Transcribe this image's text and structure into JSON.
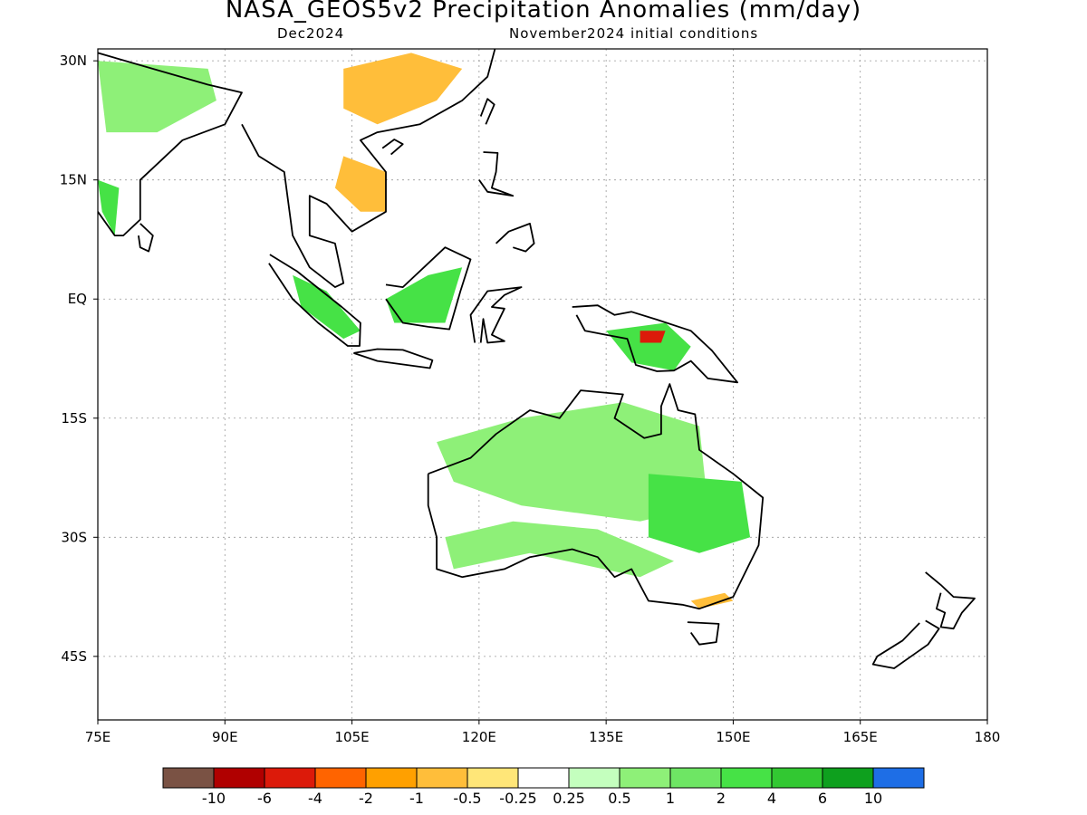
{
  "title": "NASA_GEOS5v2 Precipitation Anomalies (mm/day)",
  "subtitle_left": "Dec2024",
  "subtitle_right": "November2024 initial conditions",
  "map": {
    "lon_range": [
      75,
      180
    ],
    "lat_range": [
      -53,
      31.5
    ],
    "grid": "dotted",
    "lon_ticks": [
      {
        "lon": 75,
        "label": "75E"
      },
      {
        "lon": 90,
        "label": "90E"
      },
      {
        "lon": 105,
        "label": "105E"
      },
      {
        "lon": 120,
        "label": "120E"
      },
      {
        "lon": 135,
        "label": "135E"
      },
      {
        "lon": 150,
        "label": "150E"
      },
      {
        "lon": 165,
        "label": "165E"
      },
      {
        "lon": 180,
        "label": "180"
      }
    ],
    "lat_ticks": [
      {
        "lat": 30,
        "label": "30N"
      },
      {
        "lat": 15,
        "label": "15N"
      },
      {
        "lat": 0,
        "label": "EQ"
      },
      {
        "lat": -15,
        "label": "15S"
      },
      {
        "lat": -30,
        "label": "30S"
      },
      {
        "lat": -45,
        "label": "45S"
      }
    ]
  },
  "colorbar": {
    "colors": [
      "#7a5244",
      "#b00000",
      "#dc1a0a",
      "#ff6400",
      "#ffa000",
      "#ffbe3a",
      "#ffe678",
      "#ffffff",
      "#c4ffbe",
      "#8ef078",
      "#6ee664",
      "#46e246",
      "#32c832",
      "#0ea01e",
      "#1e6ee6"
    ],
    "labels": [
      "-10",
      "-6",
      "-4",
      "-2",
      "-1",
      "-0.5",
      "-0.25",
      "0.25",
      "0.5",
      "1",
      "2",
      "4",
      "6",
      "10"
    ]
  },
  "regions": [
    {
      "name": "india-west-ghats",
      "color": "#46e246",
      "pts": [
        [
          75,
          15
        ],
        [
          77.5,
          14
        ],
        [
          77,
          8
        ],
        [
          75.5,
          11
        ]
      ]
    },
    {
      "name": "india-north",
      "color": "#8ef078",
      "pts": [
        [
          75,
          30
        ],
        [
          88,
          29
        ],
        [
          89,
          25
        ],
        [
          82,
          21
        ],
        [
          76,
          21
        ]
      ]
    },
    {
      "name": "south-china",
      "color": "#ffbe3a",
      "pts": [
        [
          104,
          29
        ],
        [
          112,
          31
        ],
        [
          118,
          29
        ],
        [
          115,
          25
        ],
        [
          108,
          22
        ],
        [
          104,
          24
        ]
      ]
    },
    {
      "name": "indochina",
      "color": "#ffbe3a",
      "pts": [
        [
          104,
          18
        ],
        [
          109,
          16
        ],
        [
          109,
          11
        ],
        [
          106,
          11
        ],
        [
          103,
          14
        ]
      ]
    },
    {
      "name": "sumatra",
      "color": "#46e246",
      "pts": [
        [
          98,
          3
        ],
        [
          102,
          1
        ],
        [
          106,
          -4
        ],
        [
          104,
          -5
        ],
        [
          99,
          -1
        ]
      ]
    },
    {
      "name": "borneo",
      "color": "#46e246",
      "pts": [
        [
          109,
          0
        ],
        [
          114,
          3
        ],
        [
          118,
          4
        ],
        [
          116,
          -3
        ],
        [
          110,
          -3
        ]
      ]
    },
    {
      "name": "new-guinea",
      "color": "#46e246",
      "pts": [
        [
          135,
          -4
        ],
        [
          142,
          -3
        ],
        [
          145,
          -6
        ],
        [
          143,
          -9
        ],
        [
          138,
          -8
        ]
      ]
    },
    {
      "name": "png-dry",
      "color": "#dc1a0a",
      "pts": [
        [
          139,
          -4
        ],
        [
          142,
          -4
        ],
        [
          141.5,
          -5.5
        ],
        [
          139,
          -5.5
        ]
      ]
    },
    {
      "name": "australia-north",
      "color": "#8ef078",
      "pts": [
        [
          115,
          -18
        ],
        [
          125,
          -15
        ],
        [
          137,
          -13
        ],
        [
          146,
          -16
        ],
        [
          147,
          -26
        ],
        [
          139,
          -28
        ],
        [
          125,
          -26
        ],
        [
          117,
          -23
        ]
      ]
    },
    {
      "name": "australia-east",
      "color": "#46e246",
      "pts": [
        [
          140,
          -22
        ],
        [
          151,
          -23
        ],
        [
          152,
          -30
        ],
        [
          146,
          -32
        ],
        [
          140,
          -30
        ]
      ]
    },
    {
      "name": "australia-southwest",
      "color": "#8ef078",
      "pts": [
        [
          116,
          -30
        ],
        [
          124,
          -28
        ],
        [
          134,
          -29
        ],
        [
          143,
          -33
        ],
        [
          139,
          -35
        ],
        [
          126,
          -32
        ],
        [
          117,
          -34
        ]
      ]
    },
    {
      "name": "australia-southeast-dry",
      "color": "#ffbe3a",
      "pts": [
        [
          145,
          -38
        ],
        [
          149,
          -37
        ],
        [
          150,
          -38
        ],
        [
          146,
          -39
        ]
      ]
    }
  ],
  "coastlines": [
    {
      "name": "india",
      "pts": [
        [
          75,
          31
        ],
        [
          88,
          27
        ],
        [
          92,
          26
        ],
        [
          90,
          22
        ],
        [
          85,
          20
        ],
        [
          82,
          17
        ],
        [
          80,
          15
        ],
        [
          80,
          10
        ],
        [
          78,
          8
        ],
        [
          77,
          8
        ],
        [
          75,
          11
        ]
      ]
    },
    {
      "name": "sri-lanka",
      "pts": [
        [
          80,
          9.5
        ],
        [
          81.5,
          8
        ],
        [
          81,
          6
        ],
        [
          80,
          6.5
        ],
        [
          79.8,
          8
        ]
      ]
    },
    {
      "name": "southeast-asia",
      "pts": [
        [
          92,
          22
        ],
        [
          94,
          18
        ],
        [
          97,
          16
        ],
        [
          98,
          8
        ],
        [
          100,
          4
        ],
        [
          103,
          1.5
        ],
        [
          104,
          2
        ],
        [
          103,
          7
        ],
        [
          100,
          8
        ],
        [
          100,
          13
        ],
        [
          102,
          12
        ],
        [
          105,
          8.5
        ],
        [
          109,
          11
        ],
        [
          109,
          16
        ],
        [
          106,
          20
        ],
        [
          108,
          21
        ],
        [
          113,
          22
        ],
        [
          118,
          25
        ],
        [
          121,
          28
        ],
        [
          122,
          32
        ]
      ]
    },
    {
      "name": "taiwan",
      "pts": [
        [
          120.2,
          23
        ],
        [
          121,
          25.2
        ],
        [
          121.8,
          24.5
        ],
        [
          120.8,
          22
        ]
      ]
    },
    {
      "name": "hainan",
      "pts": [
        [
          108.6,
          19
        ],
        [
          110,
          20.1
        ],
        [
          111,
          19.5
        ],
        [
          109.6,
          18.2
        ]
      ]
    },
    {
      "name": "sumatra",
      "pts": [
        [
          95.3,
          5.6
        ],
        [
          98.5,
          3.5
        ],
        [
          103.8,
          -1
        ],
        [
          106,
          -3
        ],
        [
          105.9,
          -5.9
        ],
        [
          104.5,
          -5.9
        ],
        [
          101,
          -3
        ],
        [
          98,
          0
        ],
        [
          95.2,
          4.5
        ]
      ]
    },
    {
      "name": "java",
      "pts": [
        [
          105.2,
          -6.8
        ],
        [
          108,
          -6.3
        ],
        [
          111,
          -6.4
        ],
        [
          114.5,
          -7.7
        ],
        [
          114.2,
          -8.7
        ],
        [
          108,
          -7.8
        ],
        [
          105.2,
          -6.8
        ]
      ]
    },
    {
      "name": "borneo",
      "pts": [
        [
          109,
          1.8
        ],
        [
          111,
          1.5
        ],
        [
          114,
          4.5
        ],
        [
          116,
          6.5
        ],
        [
          119,
          5
        ],
        [
          117.8,
          1
        ],
        [
          116.5,
          -3.8
        ],
        [
          114,
          -3.5
        ],
        [
          111,
          -3
        ],
        [
          110,
          -1.5
        ],
        [
          109,
          0
        ]
      ]
    },
    {
      "name": "sulawesi",
      "pts": [
        [
          119.5,
          -5.5
        ],
        [
          119,
          -2
        ],
        [
          121,
          1
        ],
        [
          125,
          1.5
        ],
        [
          123,
          0.5
        ],
        [
          121.5,
          -1
        ],
        [
          123,
          -1.2
        ],
        [
          121.5,
          -4.5
        ],
        [
          123,
          -5.3
        ],
        [
          121,
          -5.5
        ],
        [
          120.5,
          -2.5
        ],
        [
          120.2,
          -5.5
        ]
      ]
    },
    {
      "name": "philippines-luzon",
      "pts": [
        [
          120.5,
          18.5
        ],
        [
          122.2,
          18.4
        ],
        [
          122,
          16
        ],
        [
          121.5,
          14
        ],
        [
          124,
          13
        ],
        [
          121,
          13.5
        ],
        [
          120,
          15
        ]
      ]
    },
    {
      "name": "mindanao",
      "pts": [
        [
          122,
          7
        ],
        [
          123.5,
          8.5
        ],
        [
          126,
          9.5
        ],
        [
          126.5,
          7
        ],
        [
          125.5,
          6
        ],
        [
          124,
          6.5
        ]
      ]
    },
    {
      "name": "new-guinea",
      "pts": [
        [
          131,
          -1
        ],
        [
          134,
          -0.8
        ],
        [
          136,
          -2
        ],
        [
          138,
          -1.6
        ],
        [
          141,
          -2.6
        ],
        [
          145,
          -4
        ],
        [
          147.5,
          -6.5
        ],
        [
          150.5,
          -10.5
        ],
        [
          147,
          -10
        ],
        [
          145,
          -7.8
        ],
        [
          143,
          -9
        ],
        [
          141,
          -9.1
        ],
        [
          138.5,
          -8.3
        ],
        [
          137.5,
          -5
        ],
        [
          135,
          -4.5
        ],
        [
          132.5,
          -4
        ],
        [
          131.5,
          -2
        ]
      ]
    },
    {
      "name": "australia",
      "pts": [
        [
          114,
          -22
        ],
        [
          114,
          -26
        ],
        [
          115,
          -30
        ],
        [
          115,
          -34
        ],
        [
          118,
          -35
        ],
        [
          123,
          -34
        ],
        [
          126,
          -32.5
        ],
        [
          131,
          -31.5
        ],
        [
          134,
          -32.5
        ],
        [
          136,
          -35
        ],
        [
          138,
          -34
        ],
        [
          140,
          -38
        ],
        [
          144,
          -38.5
        ],
        [
          146,
          -39
        ],
        [
          150,
          -37.5
        ],
        [
          153,
          -31
        ],
        [
          153.5,
          -25
        ],
        [
          150,
          -22
        ],
        [
          146,
          -19
        ],
        [
          145.5,
          -14.5
        ],
        [
          143.5,
          -14
        ],
        [
          142.5,
          -10.7
        ],
        [
          141.5,
          -13.5
        ],
        [
          141.5,
          -17
        ],
        [
          139.5,
          -17.5
        ],
        [
          136,
          -15
        ],
        [
          137,
          -12
        ],
        [
          132,
          -11.5
        ],
        [
          129.5,
          -15
        ],
        [
          126,
          -14
        ],
        [
          122,
          -17
        ],
        [
          119,
          -20
        ],
        [
          114,
          -22
        ]
      ]
    },
    {
      "name": "tasmania",
      "pts": [
        [
          144.6,
          -40.7
        ],
        [
          148.3,
          -40.9
        ],
        [
          148,
          -43.2
        ],
        [
          146,
          -43.5
        ],
        [
          145,
          -42
        ]
      ]
    },
    {
      "name": "new-zealand-north",
      "pts": [
        [
          172.7,
          -34.4
        ],
        [
          174.5,
          -36
        ],
        [
          176,
          -37.5
        ],
        [
          178.5,
          -37.7
        ],
        [
          177,
          -39.5
        ],
        [
          176,
          -41.5
        ],
        [
          174.5,
          -41.3
        ],
        [
          175,
          -39.5
        ],
        [
          174,
          -39
        ],
        [
          174.5,
          -37
        ]
      ]
    },
    {
      "name": "new-zealand-south",
      "pts": [
        [
          172.7,
          -40.5
        ],
        [
          174.3,
          -41.5
        ],
        [
          173,
          -43.5
        ],
        [
          171,
          -45
        ],
        [
          169,
          -46.5
        ],
        [
          166.5,
          -46
        ],
        [
          167,
          -45
        ],
        [
          170,
          -43
        ],
        [
          172,
          -40.8
        ]
      ]
    }
  ]
}
